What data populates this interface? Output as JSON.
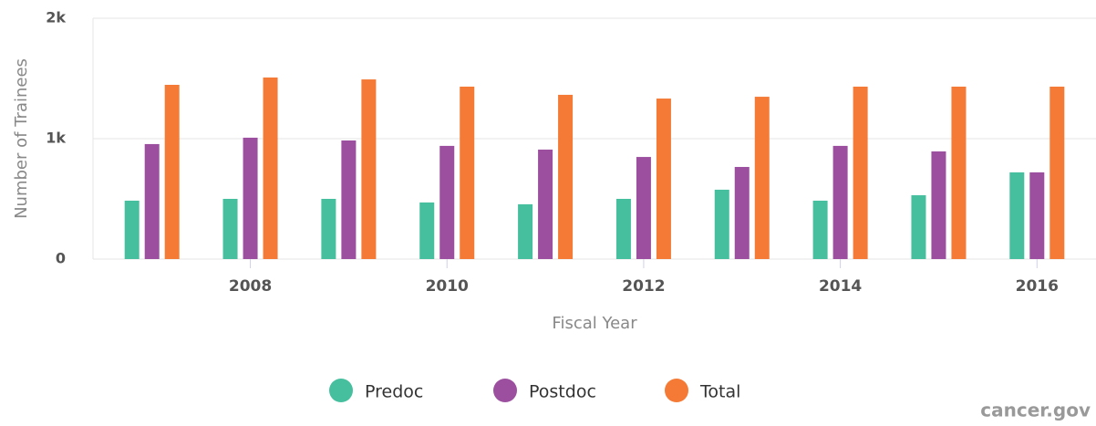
{
  "chart_data": {
    "type": "bar",
    "x": [
      2007,
      2008,
      2009,
      2010,
      2011,
      2012,
      2013,
      2014,
      2015,
      2016
    ],
    "xlim": [
      2006.4,
      2016.6
    ],
    "xticks": [
      2008,
      2010,
      2012,
      2014,
      2016
    ],
    "ylim": [
      0,
      2000
    ],
    "yticks": [
      0,
      {
        "value": 1000,
        "label": "1k"
      },
      {
        "value": 2000,
        "label": "2k"
      }
    ],
    "grid": true,
    "xlabel": "Fiscal Year",
    "ylabel": "Number of Trainees",
    "legend": "bottom",
    "credit": "cancer.gov",
    "series": [
      {
        "name": "Predoc",
        "color": "#45bf9e",
        "values": [
          485,
          500,
          500,
          470,
          455,
          500,
          576,
          485,
          530,
          720
        ]
      },
      {
        "name": "Postdoc",
        "color": "#9b4f9e",
        "values": [
          955,
          1008,
          985,
          940,
          909,
          848,
          765,
          940,
          894,
          720
        ]
      },
      {
        "name": "Total",
        "color": "#f47a35",
        "values": [
          1447,
          1508,
          1492,
          1432,
          1364,
          1333,
          1348,
          1432,
          1432,
          1432
        ]
      }
    ]
  }
}
